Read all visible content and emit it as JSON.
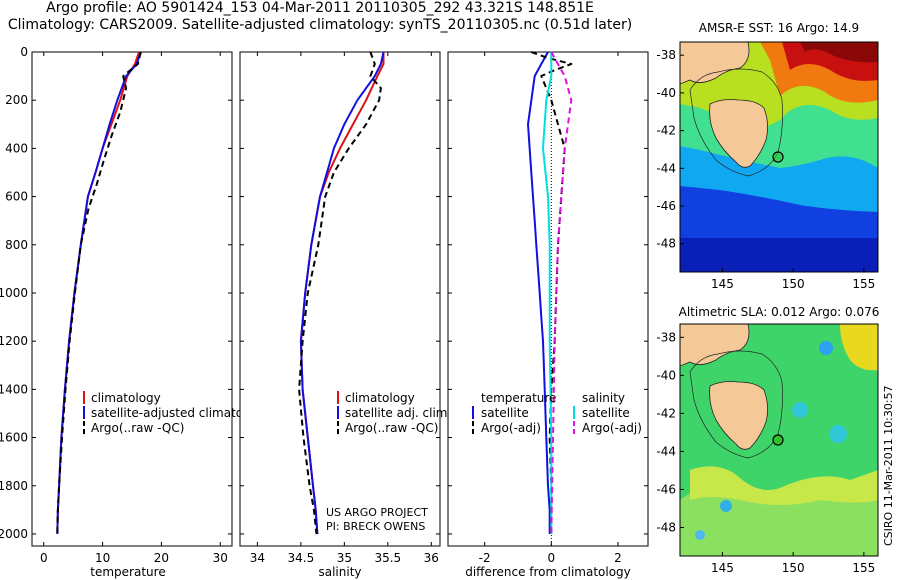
{
  "header": {
    "line1": "Argo profile: AO 5901424_153 04-Mar-2011 20110305_292 43.321S 148.851E",
    "line2": "Climatology: CARS2009. Satellite-adjusted climatology: synTS_20110305.nc (0.51d later)"
  },
  "credits": {
    "project": "US ARGO PROJECT",
    "pi": "PI: BRECK OWENS",
    "stamp": "CSIRO 11-Mar-2011 10:30:57"
  },
  "colors": {
    "climatology": "#e01010",
    "satellite": "#1010e0",
    "argo": "#000000",
    "sat_salinity": "#00e0e0",
    "argo_salinity": "#e010e0"
  },
  "chart_data": [
    {
      "type": "line",
      "xlabel": "temperature",
      "ylim": [
        2050,
        0
      ],
      "xlim": [
        -2,
        32
      ],
      "xticks": [
        0,
        10,
        20,
        30
      ],
      "yticks": [
        0,
        200,
        400,
        600,
        800,
        1000,
        1200,
        1400,
        1600,
        1800,
        2000
      ],
      "legend": [
        "climatology",
        "satellite-adjusted climatology",
        "Argo(..raw -QC)"
      ],
      "series": [
        {
          "name": "climatology",
          "x": [
            16.2,
            15.5,
            14.2,
            13.0,
            11.5,
            10.0,
            8.8,
            7.5,
            6.3,
            5.2,
            4.3,
            3.6,
            3.0,
            2.6,
            2.4,
            2.3
          ],
          "y": [
            0,
            50,
            100,
            200,
            300,
            400,
            500,
            600,
            800,
            1000,
            1200,
            1400,
            1600,
            1800,
            1900,
            2000
          ]
        },
        {
          "name": "satellite-adjusted climatology",
          "x": [
            16.5,
            15.8,
            14.0,
            12.5,
            11.2,
            10.0,
            8.8,
            7.5,
            6.3,
            5.2,
            4.3,
            3.6,
            3.0,
            2.6,
            2.4,
            2.3
          ],
          "y": [
            0,
            50,
            100,
            200,
            300,
            400,
            500,
            600,
            800,
            1000,
            1200,
            1400,
            1600,
            1800,
            1900,
            2000
          ]
        },
        {
          "name": "Argo(..raw -QC)",
          "x": [
            16.5,
            16.0,
            13.5,
            14.0,
            13.0,
            11.5,
            10.2,
            9.0,
            7.6,
            6.3,
            5.3,
            4.4,
            3.7,
            3.1,
            2.6,
            2.4,
            2.3
          ],
          "y": [
            0,
            50,
            100,
            150,
            250,
            350,
            450,
            550,
            650,
            800,
            1000,
            1200,
            1400,
            1600,
            1800,
            1900,
            2000
          ]
        }
      ]
    },
    {
      "type": "line",
      "xlabel": "salinity",
      "ylim": [
        2050,
        0
      ],
      "xlim": [
        33.8,
        36.1
      ],
      "xticks": [
        34,
        34.5,
        35,
        35.5,
        36
      ],
      "yticks": [
        0,
        200,
        400,
        600,
        800,
        1000,
        1200,
        1400,
        1600,
        1800,
        2000
      ],
      "legend": [
        "climatology",
        "satellite adj. clim.",
        "Argo(..raw -QC)"
      ],
      "series": [
        {
          "name": "climatology",
          "x": [
            35.45,
            35.45,
            35.38,
            35.25,
            35.1,
            34.95,
            34.82,
            34.72,
            34.62,
            34.55,
            34.5,
            34.52,
            34.58,
            34.64,
            34.67,
            34.69
          ],
          "y": [
            0,
            50,
            100,
            200,
            300,
            400,
            500,
            600,
            800,
            1000,
            1200,
            1400,
            1600,
            1800,
            1900,
            2000
          ]
        },
        {
          "name": "satellite adj. clim.",
          "x": [
            35.45,
            35.42,
            35.35,
            35.15,
            35.0,
            34.88,
            34.8,
            34.72,
            34.62,
            34.55,
            34.5,
            34.52,
            34.58,
            34.64,
            34.67,
            34.69
          ],
          "y": [
            0,
            50,
            100,
            200,
            300,
            400,
            500,
            600,
            800,
            1000,
            1200,
            1400,
            1600,
            1800,
            1900,
            2000
          ]
        },
        {
          "name": "Argo(..raw -QC)",
          "x": [
            35.3,
            35.35,
            35.3,
            35.42,
            35.4,
            35.25,
            35.05,
            34.88,
            34.78,
            34.7,
            34.58,
            34.52,
            34.48,
            34.53,
            34.6,
            34.65,
            34.68
          ],
          "y": [
            0,
            50,
            100,
            150,
            200,
            300,
            400,
            500,
            600,
            800,
            1000,
            1200,
            1400,
            1600,
            1800,
            1900,
            2000
          ]
        }
      ]
    },
    {
      "type": "line",
      "xlabel": "difference from climatology",
      "ylim": [
        2050,
        0
      ],
      "xlim": [
        -3.1,
        2.9
      ],
      "xticks": [
        -2,
        0,
        2
      ],
      "yticks": [
        0,
        200,
        400,
        600,
        800,
        1000,
        1200,
        1400,
        1600,
        1800,
        2000
      ],
      "legend_groups": [
        "temperature",
        "salinity"
      ],
      "legend": [
        "satellite",
        "Argo(-adj)",
        "satellite",
        "Argo(-adj)"
      ],
      "series": [
        {
          "name": "temperature satellite",
          "x": [
            -0.1,
            -0.3,
            -0.5,
            -0.7,
            -0.6,
            -0.5,
            -0.45,
            -0.4,
            -0.35,
            -0.3,
            -0.25,
            -0.2,
            -0.15,
            -0.1,
            -0.05,
            -0.05
          ],
          "y": [
            0,
            50,
            100,
            300,
            500,
            700,
            800,
            900,
            1000,
            1100,
            1200,
            1400,
            1600,
            1800,
            1900,
            2000
          ]
        },
        {
          "name": "temperature Argo(-adj)",
          "x": [
            -0.6,
            -0.1,
            0.6,
            0.1,
            -0.3,
            0.0,
            0.4,
            0.3,
            0.2,
            0.15,
            0.1,
            0.0,
            -0.05,
            0.0,
            0.0
          ],
          "y": [
            0,
            25,
            50,
            75,
            100,
            200,
            400,
            600,
            800,
            1000,
            1200,
            1400,
            1600,
            1800,
            2000
          ]
        },
        {
          "name": "salinity satellite",
          "x": [
            0.0,
            0.0,
            -0.15,
            -0.25,
            -0.1,
            -0.05,
            -0.05,
            -0.05,
            0.0,
            0.0,
            0.0
          ],
          "y": [
            0,
            100,
            200,
            400,
            600,
            800,
            1000,
            1200,
            1600,
            1800,
            2000
          ]
        },
        {
          "name": "salinity Argo(-adj)",
          "x": [
            0.0,
            0.4,
            0.6,
            0.5,
            0.4,
            0.3,
            0.2,
            0.1,
            0.05,
            0.0
          ],
          "y": [
            0,
            100,
            200,
            300,
            400,
            600,
            800,
            1200,
            1600,
            2000
          ]
        }
      ]
    }
  ],
  "maps": [
    {
      "title": "AMSR-E SST: 16 Argo: 14.9",
      "xticks": [
        145,
        150,
        155
      ],
      "yticks": [
        -38,
        -40,
        -42,
        -44,
        -46,
        -48
      ],
      "xlim": [
        142,
        156
      ],
      "ylim": [
        -49.5,
        -37.3
      ]
    },
    {
      "title": "Altimetric SLA: 0.012 Argo: 0.076",
      "xticks": [
        145,
        150,
        155
      ],
      "yticks": [
        -38,
        -40,
        -42,
        -44,
        -46,
        -48
      ],
      "xlim": [
        142,
        156
      ],
      "ylim": [
        -49.5,
        -37.3
      ]
    }
  ]
}
